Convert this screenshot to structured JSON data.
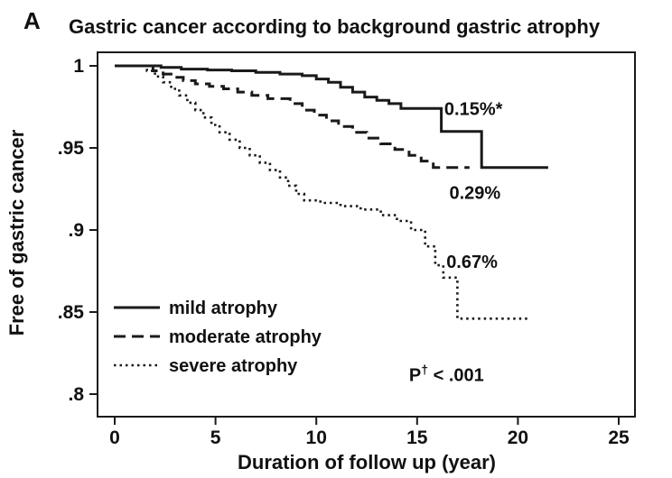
{
  "panel_label": "A",
  "colors": {
    "line": "#1a1a1a",
    "text": "#111111",
    "background": "#ffffff"
  },
  "chart_data": {
    "type": "line",
    "subtype": "kaplan-meier-step",
    "title": "Gastric cancer according to background gastric atrophy",
    "xlabel": "Duration of follow up (year)",
    "ylabel": "Free of gastric cancer",
    "xlim": [
      0,
      25
    ],
    "ylim": [
      0.8,
      1.0
    ],
    "grid": false,
    "x_ticks": [
      0,
      5,
      10,
      15,
      20,
      25
    ],
    "y_ticks": [
      {
        "v": 1.0,
        "label": "1"
      },
      {
        "v": 0.95,
        "label": ".95"
      },
      {
        "v": 0.9,
        "label": ".9"
      },
      {
        "v": 0.85,
        "label": ".85"
      },
      {
        "v": 0.8,
        "label": ".8"
      }
    ],
    "series": [
      {
        "name": "mild atrophy",
        "line_style": "solid",
        "event_rate_label": "0.15%*",
        "points": [
          [
            0,
            1
          ],
          [
            2.3,
            0.999
          ],
          [
            3.3,
            0.998
          ],
          [
            4.6,
            0.9975
          ],
          [
            5.8,
            0.997
          ],
          [
            7.0,
            0.996
          ],
          [
            8.2,
            0.995
          ],
          [
            9.3,
            0.994
          ],
          [
            10.0,
            0.992
          ],
          [
            10.6,
            0.99
          ],
          [
            11.2,
            0.987
          ],
          [
            11.8,
            0.984
          ],
          [
            12.4,
            0.981
          ],
          [
            13.0,
            0.979
          ],
          [
            13.6,
            0.977
          ],
          [
            14.2,
            0.974
          ],
          [
            16.2,
            0.96
          ],
          [
            18.2,
            0.938
          ],
          [
            21.5,
            0.938
          ]
        ]
      },
      {
        "name": "moderate atrophy",
        "line_style": "dashed",
        "event_rate_label": "0.29%",
        "points": [
          [
            0,
            1
          ],
          [
            1.9,
            0.997
          ],
          [
            2.4,
            0.995
          ],
          [
            2.9,
            0.993
          ],
          [
            3.4,
            0.991
          ],
          [
            4.0,
            0.989
          ],
          [
            4.7,
            0.9875
          ],
          [
            5.4,
            0.986
          ],
          [
            6.1,
            0.984
          ],
          [
            6.8,
            0.982
          ],
          [
            7.6,
            0.98
          ],
          [
            8.7,
            0.977
          ],
          [
            9.3,
            0.973
          ],
          [
            9.9,
            0.97
          ],
          [
            10.5,
            0.9665
          ],
          [
            11.1,
            0.963
          ],
          [
            11.8,
            0.9595
          ],
          [
            12.5,
            0.956
          ],
          [
            13.2,
            0.9525
          ],
          [
            13.9,
            0.949
          ],
          [
            14.6,
            0.9455
          ],
          [
            15.2,
            0.942
          ],
          [
            15.8,
            0.938
          ],
          [
            17.6,
            0.938
          ]
        ]
      },
      {
        "name": "severe atrophy",
        "line_style": "dotted",
        "event_rate_label": "0.67%",
        "points": [
          [
            0,
            1
          ],
          [
            1.6,
            0.997
          ],
          [
            2.0,
            0.9935
          ],
          [
            2.4,
            0.99
          ],
          [
            2.8,
            0.986
          ],
          [
            3.2,
            0.982
          ],
          [
            3.6,
            0.9775
          ],
          [
            4.0,
            0.973
          ],
          [
            4.4,
            0.9685
          ],
          [
            4.8,
            0.964
          ],
          [
            5.2,
            0.9595
          ],
          [
            5.7,
            0.955
          ],
          [
            6.2,
            0.95
          ],
          [
            6.7,
            0.9455
          ],
          [
            7.2,
            0.941
          ],
          [
            7.7,
            0.9365
          ],
          [
            8.2,
            0.932
          ],
          [
            8.6,
            0.927
          ],
          [
            9.0,
            0.922
          ],
          [
            9.4,
            0.918
          ],
          [
            10.2,
            0.9165
          ],
          [
            11.2,
            0.9145
          ],
          [
            12.2,
            0.9125
          ],
          [
            13.2,
            0.909
          ],
          [
            14.0,
            0.9055
          ],
          [
            14.7,
            0.9
          ],
          [
            15.4,
            0.89
          ],
          [
            15.9,
            0.8785
          ],
          [
            16.3,
            0.871
          ],
          [
            17.0,
            0.846
          ],
          [
            20.5,
            0.846
          ]
        ]
      }
    ],
    "legend": {
      "position": "inside-bottom-left",
      "items": [
        {
          "label": "mild atrophy",
          "line_style": "solid"
        },
        {
          "label": "moderate atrophy",
          "line_style": "dashed"
        },
        {
          "label": "severe atrophy",
          "line_style": "dotted"
        }
      ]
    },
    "annotations": [
      {
        "text": "0.15%*",
        "x": 16.35,
        "y": 0.97,
        "anchor": "start"
      },
      {
        "text": "0.29%",
        "x": 16.6,
        "y": 0.919,
        "anchor": "start"
      },
      {
        "text": "0.67%",
        "x": 16.45,
        "y": 0.877,
        "anchor": "start"
      },
      {
        "parts": [
          {
            "t": "P"
          },
          {
            "t": "†",
            "sup": true
          },
          {
            "t": " < .001"
          }
        ],
        "x": 14.6,
        "y": 0.808,
        "anchor": "start"
      }
    ]
  }
}
